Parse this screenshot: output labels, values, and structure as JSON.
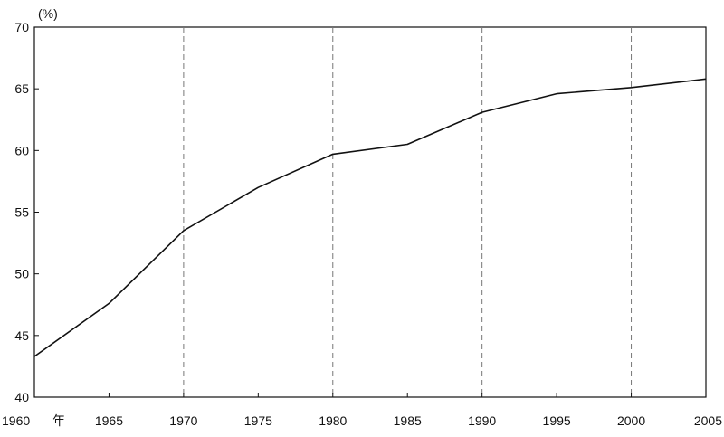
{
  "chart_data": {
    "type": "line",
    "title": "",
    "xlabel": "",
    "ylabel": "",
    "y_unit_label": "(%)",
    "x_first_suffix": "年",
    "x": [
      1960,
      1965,
      1970,
      1975,
      1980,
      1985,
      1990,
      1995,
      2000,
      2005
    ],
    "x_tick_labels": [
      "1960",
      "1965",
      "1970",
      "1975",
      "1980",
      "1985",
      "1990",
      "1995",
      "2000",
      "2005"
    ],
    "series": [
      {
        "values": [
          43.3,
          47.6,
          53.5,
          57.0,
          59.7,
          60.5,
          63.1,
          64.6,
          65.1,
          65.8
        ]
      }
    ],
    "ylim": [
      40,
      70
    ],
    "y_ticks": [
      40,
      45,
      50,
      55,
      60,
      65,
      70
    ],
    "xlim": [
      1960,
      2005
    ],
    "vertical_gridlines_at": [
      1970,
      1980,
      1990,
      2000
    ],
    "gridline_style": "dashed",
    "line_color": "#111111",
    "grid_color": "#777777",
    "legend": false
  }
}
